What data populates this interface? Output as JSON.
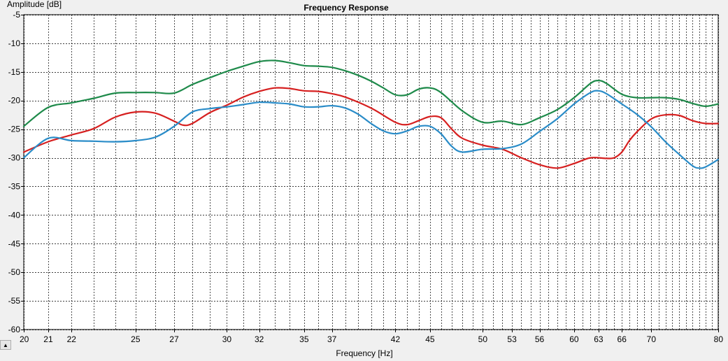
{
  "chart_data": {
    "type": "line",
    "title": "Frequency Response",
    "xlabel": "Frequency [Hz]",
    "ylabel": "Amplitude [dB]",
    "x_scale": "log",
    "xlim": [
      20,
      80
    ],
    "ylim": [
      -60,
      -5
    ],
    "x_ticks": [
      20,
      21,
      22,
      25,
      27,
      30,
      32,
      35,
      37,
      42,
      45,
      50,
      53,
      56,
      60,
      63,
      66,
      70,
      80
    ],
    "y_ticks": [
      -5,
      -10,
      -15,
      -20,
      -25,
      -30,
      -35,
      -40,
      -45,
      -50,
      -55,
      -60
    ],
    "grid": true,
    "series": [
      {
        "color": "#1e8a4a",
        "points": [
          [
            20,
            -24.5
          ],
          [
            21,
            -21.2
          ],
          [
            22,
            -20.4
          ],
          [
            23,
            -19.6
          ],
          [
            24,
            -18.7
          ],
          [
            25,
            -18.6
          ],
          [
            26,
            -18.6
          ],
          [
            27,
            -18.7
          ],
          [
            28,
            -17.2
          ],
          [
            29,
            -16.0
          ],
          [
            30,
            -14.9
          ],
          [
            31,
            -14.0
          ],
          [
            32,
            -13.2
          ],
          [
            33,
            -13.0
          ],
          [
            34,
            -13.4
          ],
          [
            35,
            -13.9
          ],
          [
            36,
            -14.0
          ],
          [
            37,
            -14.2
          ],
          [
            38,
            -14.8
          ],
          [
            39,
            -15.6
          ],
          [
            40,
            -16.6
          ],
          [
            41,
            -17.8
          ],
          [
            42,
            -19.0
          ],
          [
            43,
            -19.0
          ],
          [
            44,
            -18.0
          ],
          [
            45,
            -17.8
          ],
          [
            46,
            -18.6
          ],
          [
            48,
            -21.8
          ],
          [
            50,
            -23.8
          ],
          [
            52,
            -23.6
          ],
          [
            54,
            -24.2
          ],
          [
            56,
            -23.0
          ],
          [
            58,
            -21.6
          ],
          [
            60,
            -19.5
          ],
          [
            62,
            -17.0
          ],
          [
            63,
            -16.5
          ],
          [
            64,
            -17.0
          ],
          [
            66,
            -18.9
          ],
          [
            68,
            -19.5
          ],
          [
            70,
            -19.5
          ],
          [
            72,
            -19.5
          ],
          [
            74,
            -19.8
          ],
          [
            76,
            -20.5
          ],
          [
            78,
            -21.0
          ],
          [
            80,
            -20.6
          ]
        ]
      },
      {
        "color": "#d62020",
        "points": [
          [
            20,
            -29.0
          ],
          [
            21,
            -27.2
          ],
          [
            22,
            -26.0
          ],
          [
            23,
            -24.9
          ],
          [
            24,
            -22.9
          ],
          [
            25,
            -22.0
          ],
          [
            26,
            -22.2
          ],
          [
            27,
            -23.6
          ],
          [
            27.5,
            -24.3
          ],
          [
            28,
            -24.0
          ],
          [
            29,
            -22.1
          ],
          [
            30,
            -20.8
          ],
          [
            31,
            -19.4
          ],
          [
            32,
            -18.4
          ],
          [
            33,
            -17.8
          ],
          [
            34,
            -17.9
          ],
          [
            35,
            -18.3
          ],
          [
            36,
            -18.4
          ],
          [
            37,
            -18.8
          ],
          [
            38,
            -19.4
          ],
          [
            40,
            -21.3
          ],
          [
            42,
            -23.8
          ],
          [
            43,
            -24.2
          ],
          [
            44,
            -23.5
          ],
          [
            45,
            -22.8
          ],
          [
            46,
            -23.0
          ],
          [
            47,
            -25.0
          ],
          [
            48,
            -26.6
          ],
          [
            50,
            -27.8
          ],
          [
            52,
            -28.5
          ],
          [
            54,
            -30.0
          ],
          [
            56,
            -31.2
          ],
          [
            58,
            -31.8
          ],
          [
            60,
            -31.0
          ],
          [
            62,
            -30.0
          ],
          [
            64,
            -30.1
          ],
          [
            65,
            -30.0
          ],
          [
            66,
            -29.0
          ],
          [
            67,
            -27.0
          ],
          [
            68,
            -25.5
          ],
          [
            70,
            -23.2
          ],
          [
            72,
            -22.5
          ],
          [
            74,
            -22.6
          ],
          [
            76,
            -23.5
          ],
          [
            78,
            -24.0
          ],
          [
            80,
            -24.0
          ]
        ]
      },
      {
        "color": "#2a8cc8",
        "points": [
          [
            20,
            -30.0
          ],
          [
            21,
            -26.6
          ],
          [
            22,
            -27.0
          ],
          [
            23,
            -27.1
          ],
          [
            24,
            -27.2
          ],
          [
            25,
            -27.0
          ],
          [
            26,
            -26.4
          ],
          [
            27,
            -24.5
          ],
          [
            28,
            -22.0
          ],
          [
            29,
            -21.4
          ],
          [
            30,
            -21.1
          ],
          [
            31,
            -20.7
          ],
          [
            32,
            -20.3
          ],
          [
            33,
            -20.4
          ],
          [
            34,
            -20.6
          ],
          [
            35,
            -21.1
          ],
          [
            36,
            -21.1
          ],
          [
            37,
            -20.9
          ],
          [
            38,
            -21.3
          ],
          [
            39,
            -22.4
          ],
          [
            40,
            -24.0
          ],
          [
            41,
            -25.3
          ],
          [
            42,
            -25.8
          ],
          [
            43,
            -25.3
          ],
          [
            44,
            -24.5
          ],
          [
            45,
            -24.5
          ],
          [
            46,
            -25.8
          ],
          [
            47,
            -28.0
          ],
          [
            48,
            -29.0
          ],
          [
            50,
            -28.5
          ],
          [
            52,
            -28.4
          ],
          [
            54,
            -27.6
          ],
          [
            56,
            -25.4
          ],
          [
            58,
            -23.2
          ],
          [
            60,
            -20.6
          ],
          [
            62,
            -18.6
          ],
          [
            63,
            -18.3
          ],
          [
            64,
            -18.8
          ],
          [
            66,
            -20.6
          ],
          [
            68,
            -22.4
          ],
          [
            70,
            -24.6
          ],
          [
            72,
            -27.2
          ],
          [
            74,
            -29.4
          ],
          [
            76,
            -31.4
          ],
          [
            77,
            -31.8
          ],
          [
            78,
            -31.6
          ],
          [
            80,
            -30.3
          ]
        ]
      }
    ]
  },
  "scroll_button": {
    "glyph": "▲"
  }
}
